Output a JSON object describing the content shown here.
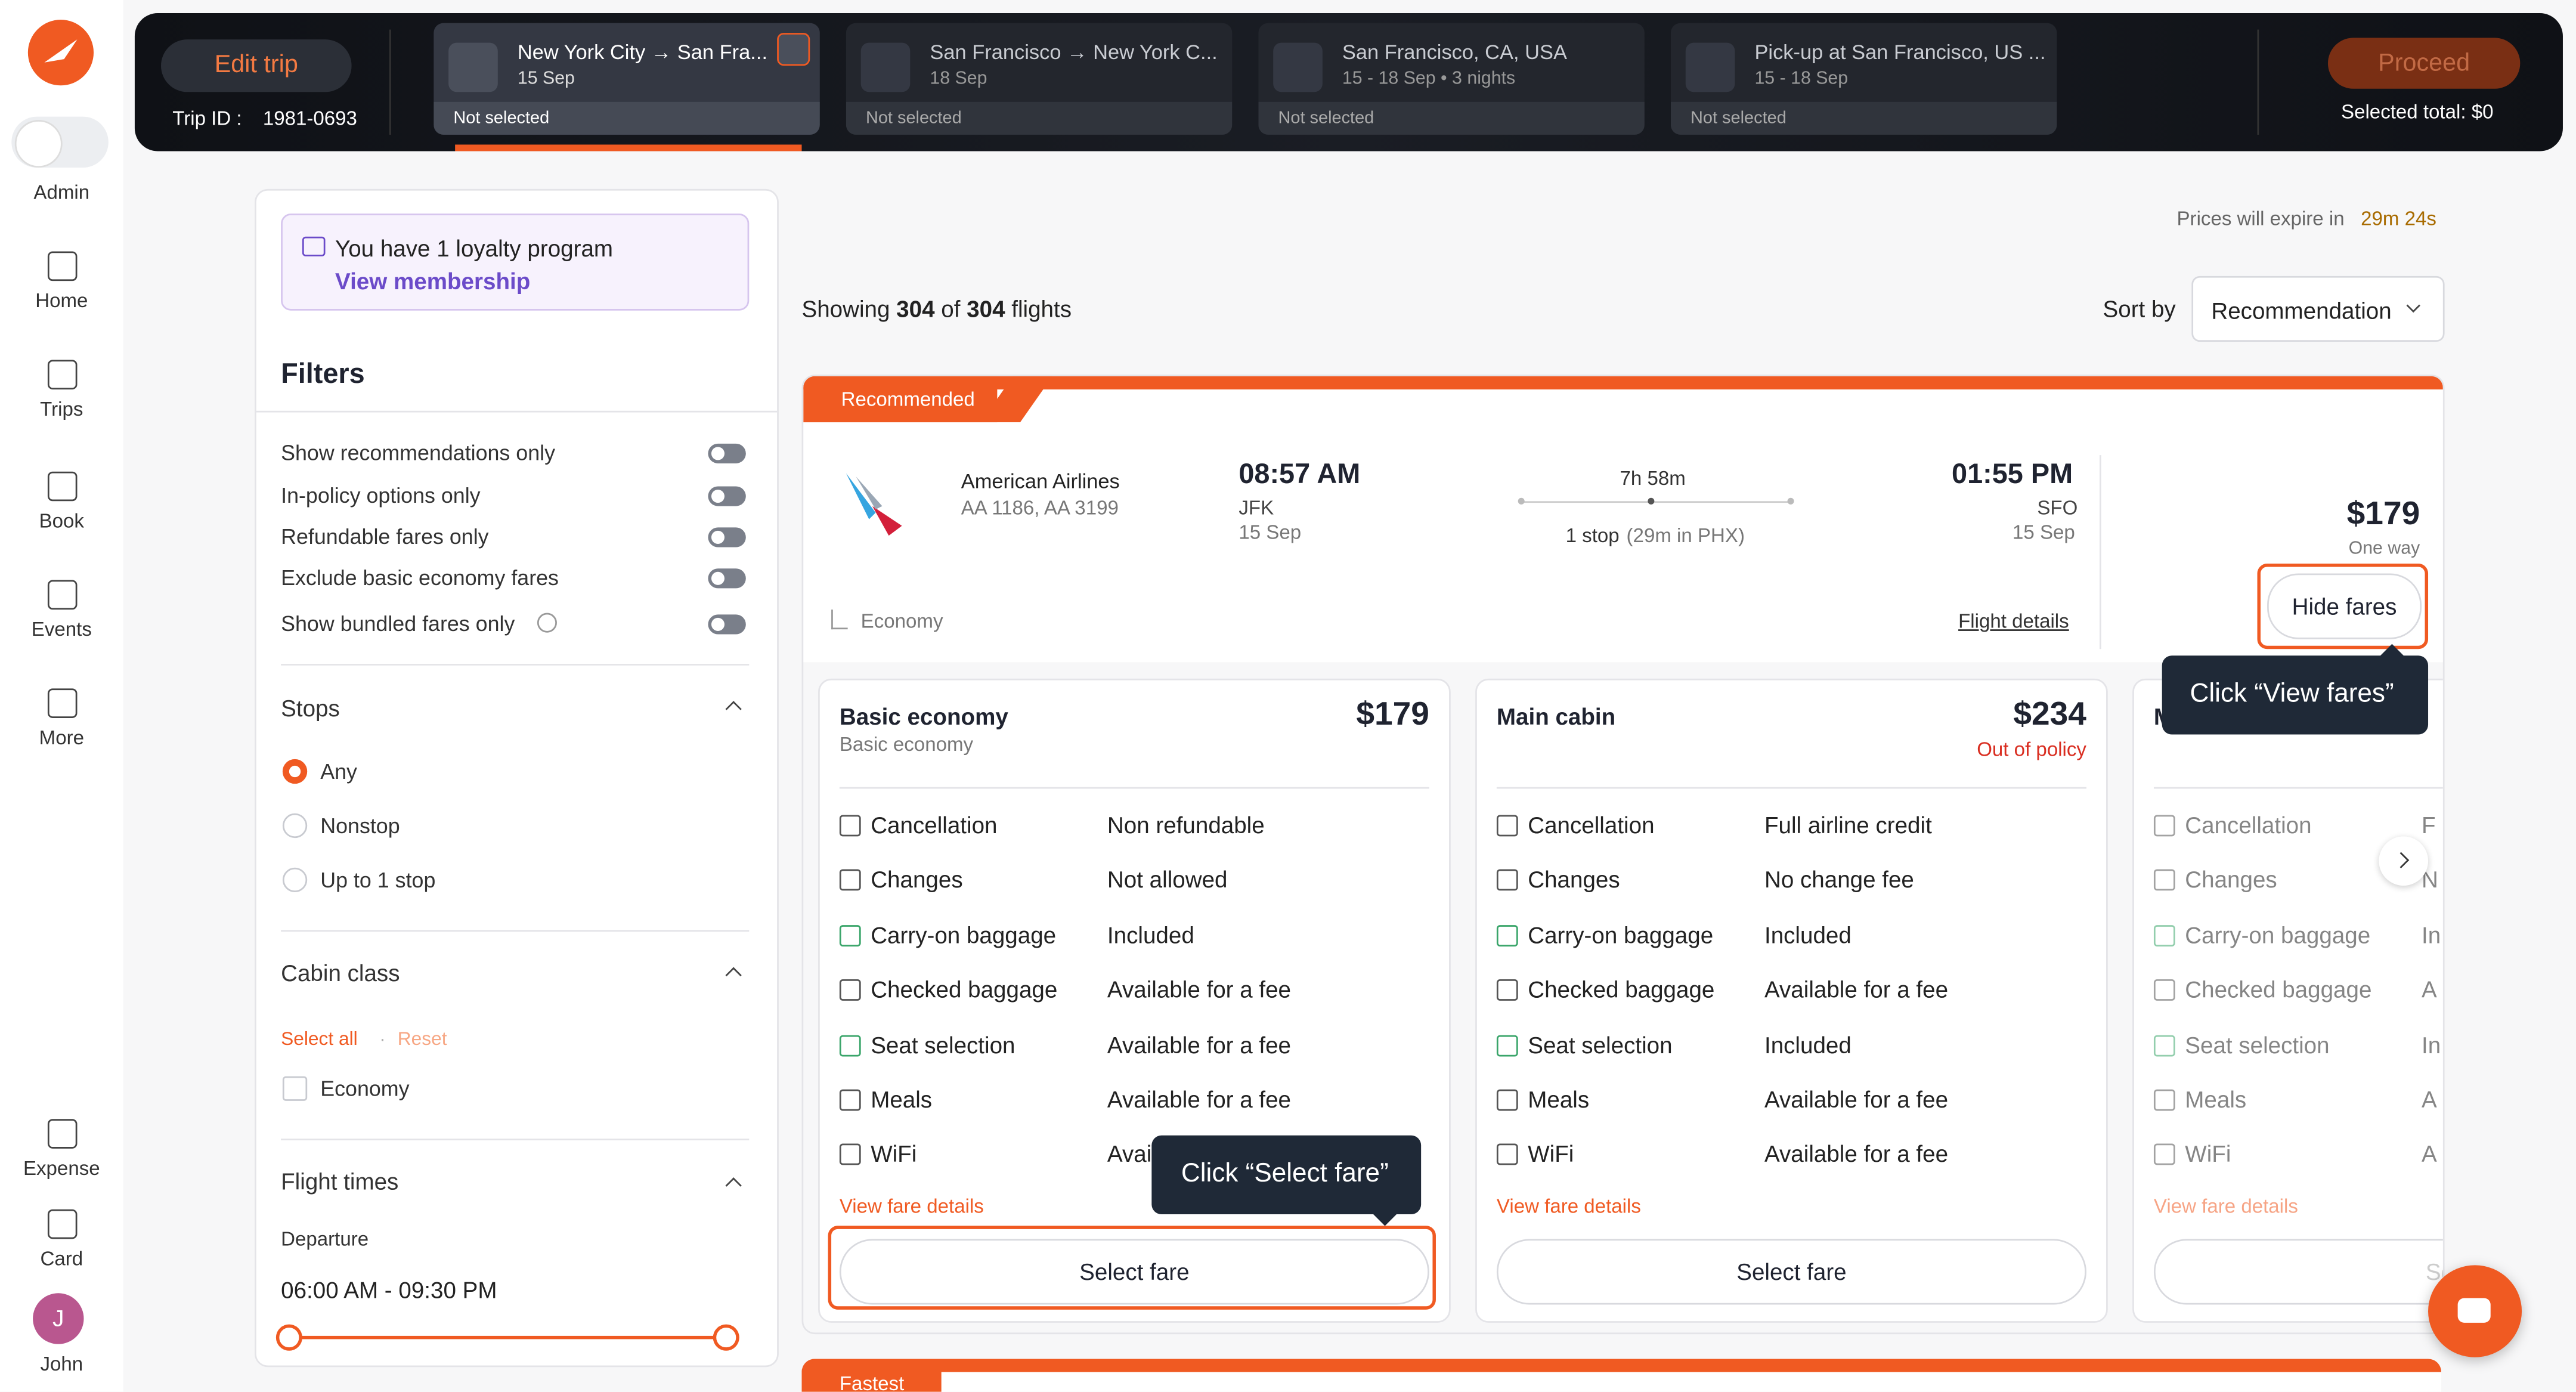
{
  "sidebar": {
    "items": [
      "Admin",
      "Home",
      "Trips",
      "Book",
      "Events",
      "More",
      "Expense",
      "Card",
      "John"
    ],
    "avatar": "J"
  },
  "header": {
    "edit_trip": "Edit trip",
    "trip_id_label": "Trip ID :",
    "trip_id": "1981-0693",
    "steps": [
      {
        "title": "New York City → San Fra...",
        "sub": "15 Sep",
        "status": "Not selected"
      },
      {
        "title": "San Francisco → New York C...",
        "sub": "18 Sep",
        "status": "Not selected"
      },
      {
        "title": "San Francisco, CA, USA",
        "sub": "15 - 18 Sep • 3 nights",
        "status": "Not selected"
      },
      {
        "title": "Pick-up at San Francisco, US ...",
        "sub": "15 - 18 Sep",
        "status": "Not selected"
      }
    ],
    "proceed": "Proceed",
    "selected_total": "Selected total: $0"
  },
  "loyalty": {
    "text": "You have 1 loyalty program",
    "link": "View membership"
  },
  "filters": {
    "title": "Filters",
    "toggles": [
      "Show recommendations only",
      "In-policy options only",
      "Refundable fares only",
      "Exclude basic economy fares",
      "Show bundled fares only"
    ],
    "stops": {
      "title": "Stops",
      "options": [
        "Any",
        "Nonstop",
        "Up to 1 stop"
      ]
    },
    "cabin": {
      "title": "Cabin class",
      "select_all": "Select all",
      "reset": "Reset",
      "options": [
        "Economy"
      ]
    },
    "times": {
      "title": "Flight times",
      "departure": "Departure",
      "range": "06:00 AM - 09:30 PM"
    }
  },
  "results": {
    "expire_label": "Prices will expire in",
    "expire_time": "29m 24s",
    "showing": "Showing",
    "count": "304",
    "of": "of",
    "total": "304",
    "flights": "flights",
    "sort_label": "Sort by",
    "sort_value": "Recommendation"
  },
  "flight": {
    "badge": "Recommended",
    "airline": "American Airlines",
    "flight_numbers": "AA 1186, AA 3199",
    "depart_time": "08:57 AM",
    "depart_airport": "JFK",
    "depart_date": "15 Sep",
    "duration": "7h 58m",
    "stops": "1 stop",
    "layover": "(29m in PHX)",
    "arrive_time": "01:55 PM",
    "arrive_airport": "SFO",
    "arrive_date": "15 Sep",
    "price": "$179",
    "price_note": "One way",
    "hide_fares": "Hide fares",
    "cabin": "Economy",
    "flight_details": "Flight details"
  },
  "fares": [
    {
      "name": "Basic economy",
      "sub": "Basic economy",
      "price": "$179",
      "rows": [
        [
          "Cancellation",
          "Non refundable"
        ],
        [
          "Changes",
          "Not allowed"
        ],
        [
          "Carry-on baggage",
          "Included"
        ],
        [
          "Checked baggage",
          "Available for a fee"
        ],
        [
          "Seat selection",
          "Available for a fee"
        ],
        [
          "Meals",
          "Available for a fee"
        ],
        [
          "WiFi",
          "Avai"
        ]
      ],
      "link": "View fare details",
      "button": "Select fare"
    },
    {
      "name": "Main cabin",
      "price": "$234",
      "policy": "Out of policy",
      "rows": [
        [
          "Cancellation",
          "Full airline credit"
        ],
        [
          "Changes",
          "No change fee"
        ],
        [
          "Carry-on baggage",
          "Included"
        ],
        [
          "Checked baggage",
          "Available for a fee"
        ],
        [
          "Seat selection",
          "Included"
        ],
        [
          "Meals",
          "Available for a fee"
        ],
        [
          "WiFi",
          "Available for a fee"
        ]
      ],
      "link": "View fare details",
      "button": "Select fare"
    },
    {
      "name": "M",
      "rows": [
        [
          "Cancellation",
          "F"
        ],
        [
          "Changes",
          "N"
        ],
        [
          "Carry-on baggage",
          "In"
        ],
        [
          "Checked baggage",
          "A"
        ],
        [
          "Seat selection",
          "In"
        ],
        [
          "Meals",
          "A"
        ],
        [
          "WiFi",
          "A"
        ]
      ],
      "link": "View fare details",
      "button": "Sele"
    }
  ],
  "tooltips": [
    "Click “View fares”",
    "Click “Select fare”"
  ],
  "next_badge": "Fastest"
}
